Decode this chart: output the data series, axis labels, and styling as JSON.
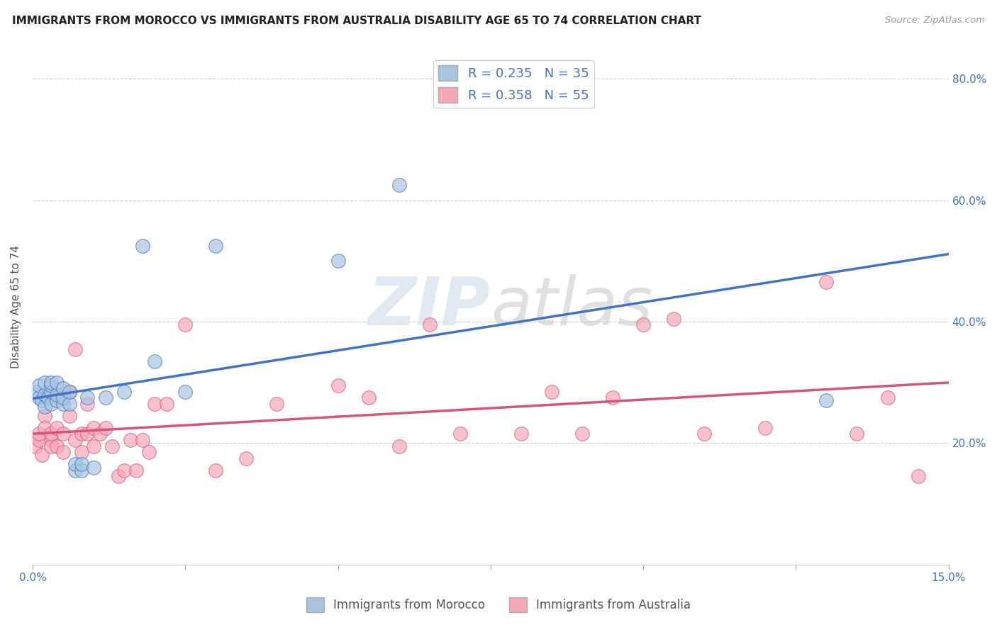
{
  "title": "IMMIGRANTS FROM MOROCCO VS IMMIGRANTS FROM AUSTRALIA DISABILITY AGE 65 TO 74 CORRELATION CHART",
  "source": "Source: ZipAtlas.com",
  "ylabel": "Disability Age 65 to 74",
  "xlim": [
    0.0,
    0.15
  ],
  "ylim": [
    0.0,
    0.85
  ],
  "xticks": [
    0.0,
    0.025,
    0.05,
    0.075,
    0.1,
    0.125,
    0.15
  ],
  "xticklabels": [
    "0.0%",
    "",
    "",
    "",
    "",
    "",
    "15.0%"
  ],
  "yticks": [
    0.0,
    0.2,
    0.4,
    0.6,
    0.8
  ],
  "yticklabels": [
    "",
    "20.0%",
    "40.0%",
    "60.0%",
    "80.0%"
  ],
  "morocco_R": 0.235,
  "morocco_N": 35,
  "australia_R": 0.358,
  "australia_N": 55,
  "morocco_color": "#a8c4e0",
  "australia_color": "#f4a8b8",
  "morocco_line_color": "#4472c4",
  "australia_line_color": "#d9547a",
  "watermark_color": "#dce6f1",
  "morocco_x": [
    0.0005,
    0.001,
    0.001,
    0.0015,
    0.002,
    0.002,
    0.002,
    0.0025,
    0.003,
    0.003,
    0.003,
    0.003,
    0.004,
    0.004,
    0.004,
    0.005,
    0.005,
    0.005,
    0.006,
    0.006,
    0.007,
    0.007,
    0.008,
    0.008,
    0.009,
    0.01,
    0.012,
    0.015,
    0.018,
    0.02,
    0.025,
    0.03,
    0.05,
    0.06,
    0.13
  ],
  "morocco_y": [
    0.285,
    0.275,
    0.295,
    0.27,
    0.26,
    0.28,
    0.3,
    0.275,
    0.265,
    0.285,
    0.295,
    0.3,
    0.27,
    0.28,
    0.3,
    0.265,
    0.275,
    0.29,
    0.265,
    0.285,
    0.155,
    0.165,
    0.155,
    0.165,
    0.275,
    0.16,
    0.275,
    0.285,
    0.525,
    0.335,
    0.285,
    0.525,
    0.5,
    0.625,
    0.27
  ],
  "australia_x": [
    0.0005,
    0.001,
    0.001,
    0.0015,
    0.002,
    0.002,
    0.003,
    0.003,
    0.003,
    0.004,
    0.004,
    0.005,
    0.005,
    0.006,
    0.006,
    0.007,
    0.007,
    0.008,
    0.008,
    0.009,
    0.009,
    0.01,
    0.01,
    0.011,
    0.012,
    0.013,
    0.014,
    0.015,
    0.016,
    0.017,
    0.018,
    0.019,
    0.02,
    0.022,
    0.025,
    0.03,
    0.035,
    0.04,
    0.05,
    0.055,
    0.06,
    0.065,
    0.07,
    0.08,
    0.085,
    0.09,
    0.095,
    0.1,
    0.105,
    0.11,
    0.12,
    0.13,
    0.135,
    0.14,
    0.145
  ],
  "australia_y": [
    0.195,
    0.205,
    0.215,
    0.18,
    0.245,
    0.225,
    0.205,
    0.195,
    0.215,
    0.195,
    0.225,
    0.185,
    0.215,
    0.245,
    0.285,
    0.355,
    0.205,
    0.215,
    0.185,
    0.265,
    0.215,
    0.195,
    0.225,
    0.215,
    0.225,
    0.195,
    0.145,
    0.155,
    0.205,
    0.155,
    0.205,
    0.185,
    0.265,
    0.265,
    0.395,
    0.155,
    0.175,
    0.265,
    0.295,
    0.275,
    0.195,
    0.395,
    0.215,
    0.215,
    0.285,
    0.215,
    0.275,
    0.395,
    0.405,
    0.215,
    0.225,
    0.465,
    0.215,
    0.275,
    0.145
  ]
}
